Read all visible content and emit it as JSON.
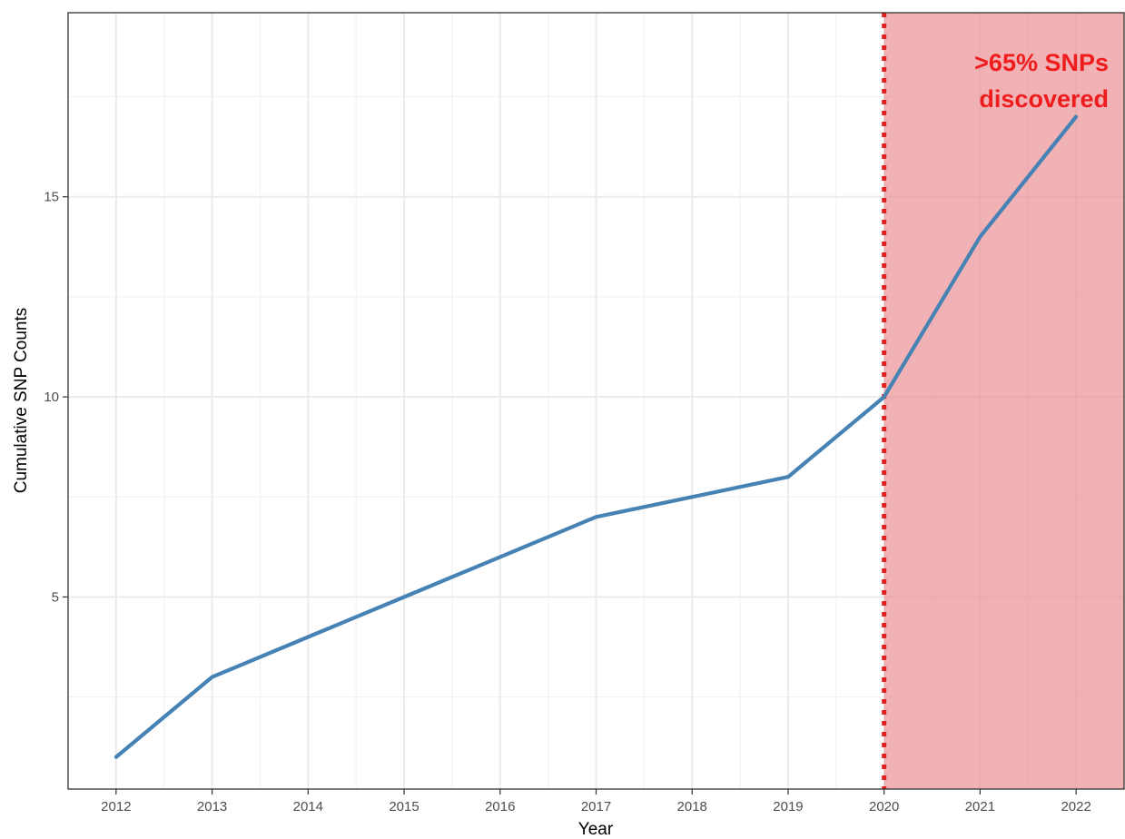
{
  "chart_data": {
    "type": "line",
    "title": "",
    "xlabel": "Year",
    "ylabel": "Cumulative SNP Counts",
    "x": [
      2012,
      2013,
      2014,
      2015,
      2016,
      2017,
      2018,
      2019,
      2020,
      2021,
      2022
    ],
    "series": [
      {
        "values": [
          1,
          3,
          4,
          5,
          6,
          7,
          7.5,
          8,
          10,
          14,
          17
        ],
        "color": "#4682b4"
      }
    ],
    "xlim": [
      2011.5,
      2022.5
    ],
    "ylim": [
      0.2,
      19.6
    ],
    "x_ticks": [
      "2012",
      "2013",
      "2014",
      "2015",
      "2016",
      "2017",
      "2018",
      "2019",
      "2020",
      "2021",
      "2022"
    ],
    "y_ticks": [
      5,
      10,
      15
    ],
    "y_tick_labels": [
      "5",
      "10",
      "15"
    ],
    "grid": true,
    "vline": {
      "x": 2020,
      "color": "#e0201a",
      "style": "dotted"
    },
    "shaded_region": {
      "x_from": 2020,
      "x_to": 2022.5,
      "color": "#e8898c"
    },
    "annotation": {
      "lines": [
        ">65% SNPs",
        "discovered"
      ],
      "color": "#ee1c1c"
    }
  }
}
